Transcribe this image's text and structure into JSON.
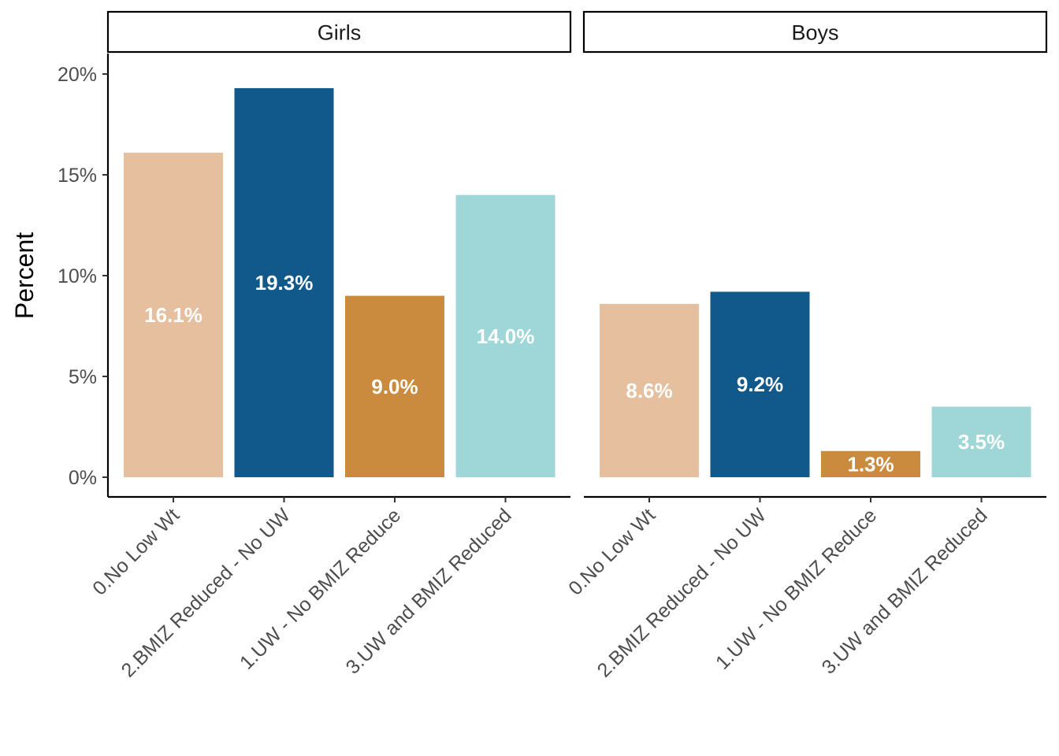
{
  "chart_data": {
    "type": "bar",
    "ylabel": "Percent",
    "xlabel": "",
    "ylim": [
      0,
      21
    ],
    "y_ticks": [
      {
        "value": 0,
        "label": "0%"
      },
      {
        "value": 5,
        "label": "5%"
      },
      {
        "value": 10,
        "label": "10%"
      },
      {
        "value": 15,
        "label": "15%"
      },
      {
        "value": 20,
        "label": "20%"
      }
    ],
    "categories": [
      "0.No Low Wt",
      "2.BMIZ Reduced - No UW",
      "1.UW - No BMIZ Reduce",
      "3.UW and BMIZ Reduced"
    ],
    "category_colors": [
      "#e6bf9f",
      "#11598a",
      "#cb8b3f",
      "#9fd7d8"
    ],
    "grid": false,
    "legend": "none",
    "panels": [
      {
        "title": "Girls",
        "values": [
          16.1,
          19.3,
          9.0,
          14.0
        ],
        "labels": [
          "16.1%",
          "19.3%",
          "9.0%",
          "14.0%"
        ]
      },
      {
        "title": "Boys",
        "values": [
          8.6,
          9.2,
          1.3,
          3.5
        ],
        "labels": [
          "8.6%",
          "9.2%",
          "1.3%",
          "3.5%"
        ]
      }
    ]
  }
}
